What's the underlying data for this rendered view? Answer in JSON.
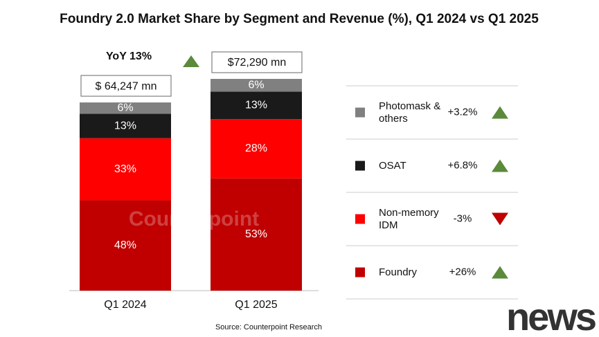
{
  "chart_data": {
    "type": "stacked-bar",
    "title": "Foundry 2.0 Market Share by Segment and Revenue (%), Q1 2024 vs Q1 2025",
    "categories": [
      "Q1 2024",
      "Q1 2025"
    ],
    "totals": [
      {
        "value": 64247,
        "label": "$ 64,247 mn"
      },
      {
        "value": 72290,
        "label": "$72,290 mn"
      }
    ],
    "yoy": "YoY 13%",
    "series": [
      {
        "name": "Foundry",
        "color": "#c00000",
        "values": [
          48,
          53
        ],
        "value_labels": [
          "48%",
          "53%"
        ],
        "change": {
          "value": 26,
          "label": "+26%"
        }
      },
      {
        "name": "Non-memory IDM",
        "color": "#ff0000",
        "values": [
          33,
          28
        ],
        "value_labels": [
          "33%",
          "28%"
        ],
        "change": {
          "value": -3,
          "label": "-3%"
        }
      },
      {
        "name": "OSAT",
        "color": "#1a1a1a",
        "values": [
          13,
          13
        ],
        "value_labels": [
          "13%",
          "13%"
        ],
        "change": {
          "value": 6.8,
          "label": "+6.8%"
        }
      },
      {
        "name": "Photomask & others",
        "color": "#808080",
        "values": [
          6,
          6
        ],
        "value_labels": [
          "6%",
          "6%"
        ],
        "change": {
          "value": 3.2,
          "label": "+3.2%"
        }
      }
    ],
    "source": "Source: Counterpoint Research",
    "watermark": "Counterpoint",
    "logo": "news"
  }
}
